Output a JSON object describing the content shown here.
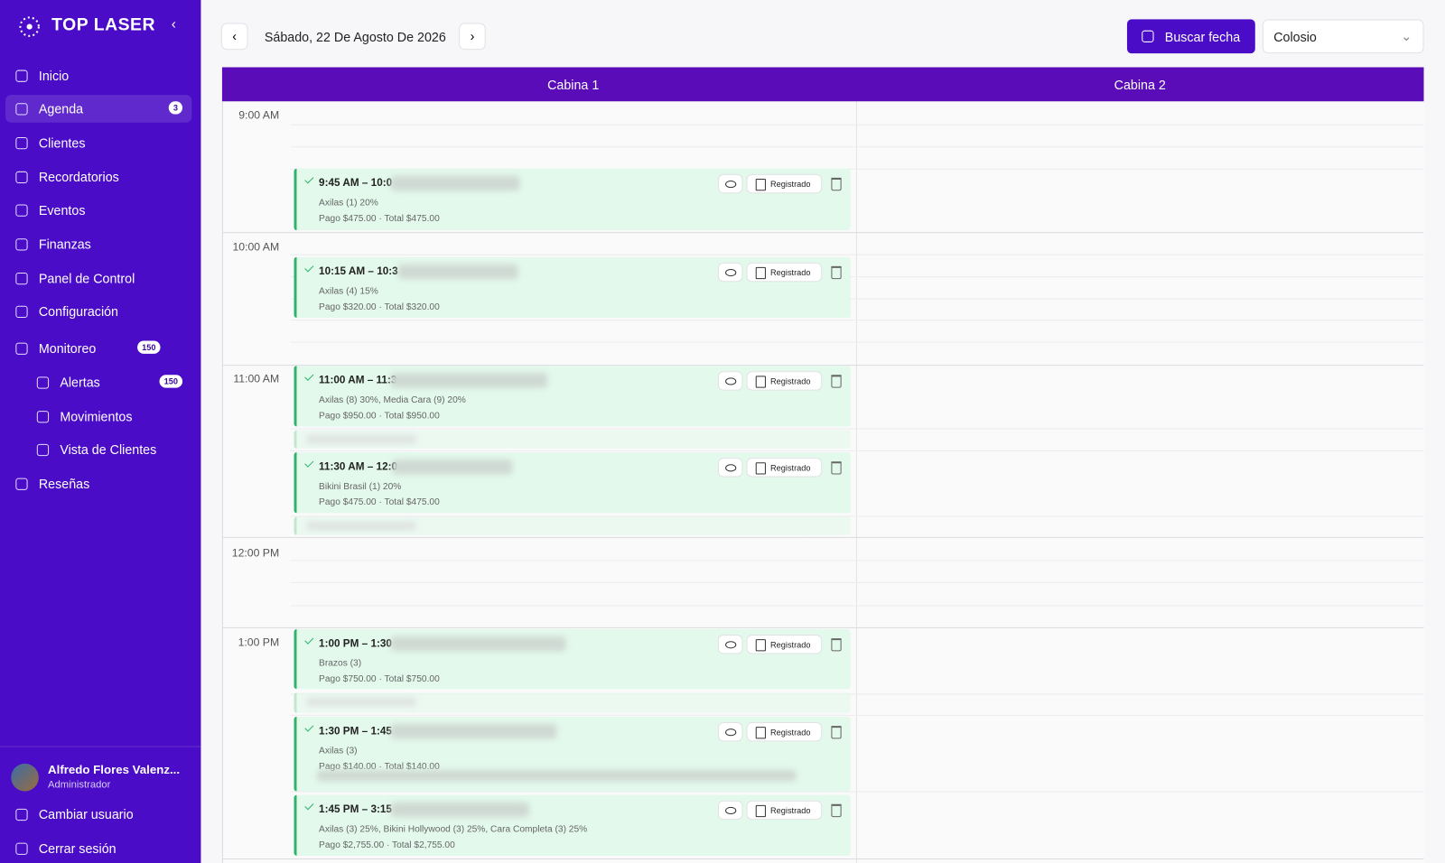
{
  "sidebar": {
    "brand": "TOP LASER",
    "nav": [
      {
        "label": "Inicio"
      },
      {
        "label": "Agenda",
        "badge": 3
      },
      {
        "label": "Clientes"
      },
      {
        "label": "Recordatorios"
      },
      {
        "label": "Eventos"
      },
      {
        "label": "Finanzas"
      },
      {
        "label": "Panel de Control"
      },
      {
        "label": "Configuración"
      },
      {
        "label": "Monitoreo",
        "badge": 150
      },
      {
        "label": "Alertas",
        "badge": 150
      },
      {
        "label": "Movimientos"
      },
      {
        "label": "Vista de Clientes"
      },
      {
        "label": "Reseñas"
      }
    ],
    "user": {
      "name": "Alfredo Flores Valenz...",
      "role": "Administrador"
    },
    "footer": [
      "Cambiar usuario",
      "Cerrar sesión"
    ]
  },
  "toolbar": {
    "date": "Sábado, 22 De Agosto De 2026",
    "search_button": "Buscar fecha",
    "branch": "Colosio"
  },
  "calendar": {
    "columns": [
      "Cabina 1",
      "Cabina 2"
    ],
    "hours": [
      "9:00 AM",
      "10:00 AM",
      "11:00 AM",
      "12:00 PM",
      "1:00 PM"
    ],
    "appointments": [
      {
        "time": "9:45 AM – 10:0",
        "services": "Axilas (1) 20%",
        "payment": "Pago $475.00 · Total $475.00",
        "status": "Registrado"
      },
      {
        "time": "10:15 AM – 10:3",
        "services": "Axilas (4) 15%",
        "payment": "Pago $320.00 · Total $320.00",
        "status": "Registrado"
      },
      {
        "time": "11:00 AM – 11:3",
        "services": "Axilas (8) 30%, Media Cara (9) 20%",
        "payment": "Pago $950.00 · Total $950.00",
        "status": "Registrado"
      },
      {
        "time": "11:30 AM – 12:0",
        "services": "Bikini Brasil (1) 20%",
        "payment": "Pago $475.00 · Total $475.00",
        "status": "Registrado"
      },
      {
        "time": "1:00 PM – 1:30",
        "services": "Brazos (3)",
        "payment": "Pago $750.00 · Total $750.00",
        "status": "Registrado"
      },
      {
        "time": "1:30 PM – 1:45",
        "services": "Axilas (3)",
        "payment": "Pago $140.00 · Total $140.00",
        "status": "Registrado"
      },
      {
        "time": "1:45 PM – 3:15",
        "services": "Axilas (3) 25%, Bikini Hollywood (3) 25%, Cara Completa (3) 25%",
        "payment": "Pago $2,755.00 · Total $2,755.00",
        "status": "Registrado"
      }
    ]
  }
}
